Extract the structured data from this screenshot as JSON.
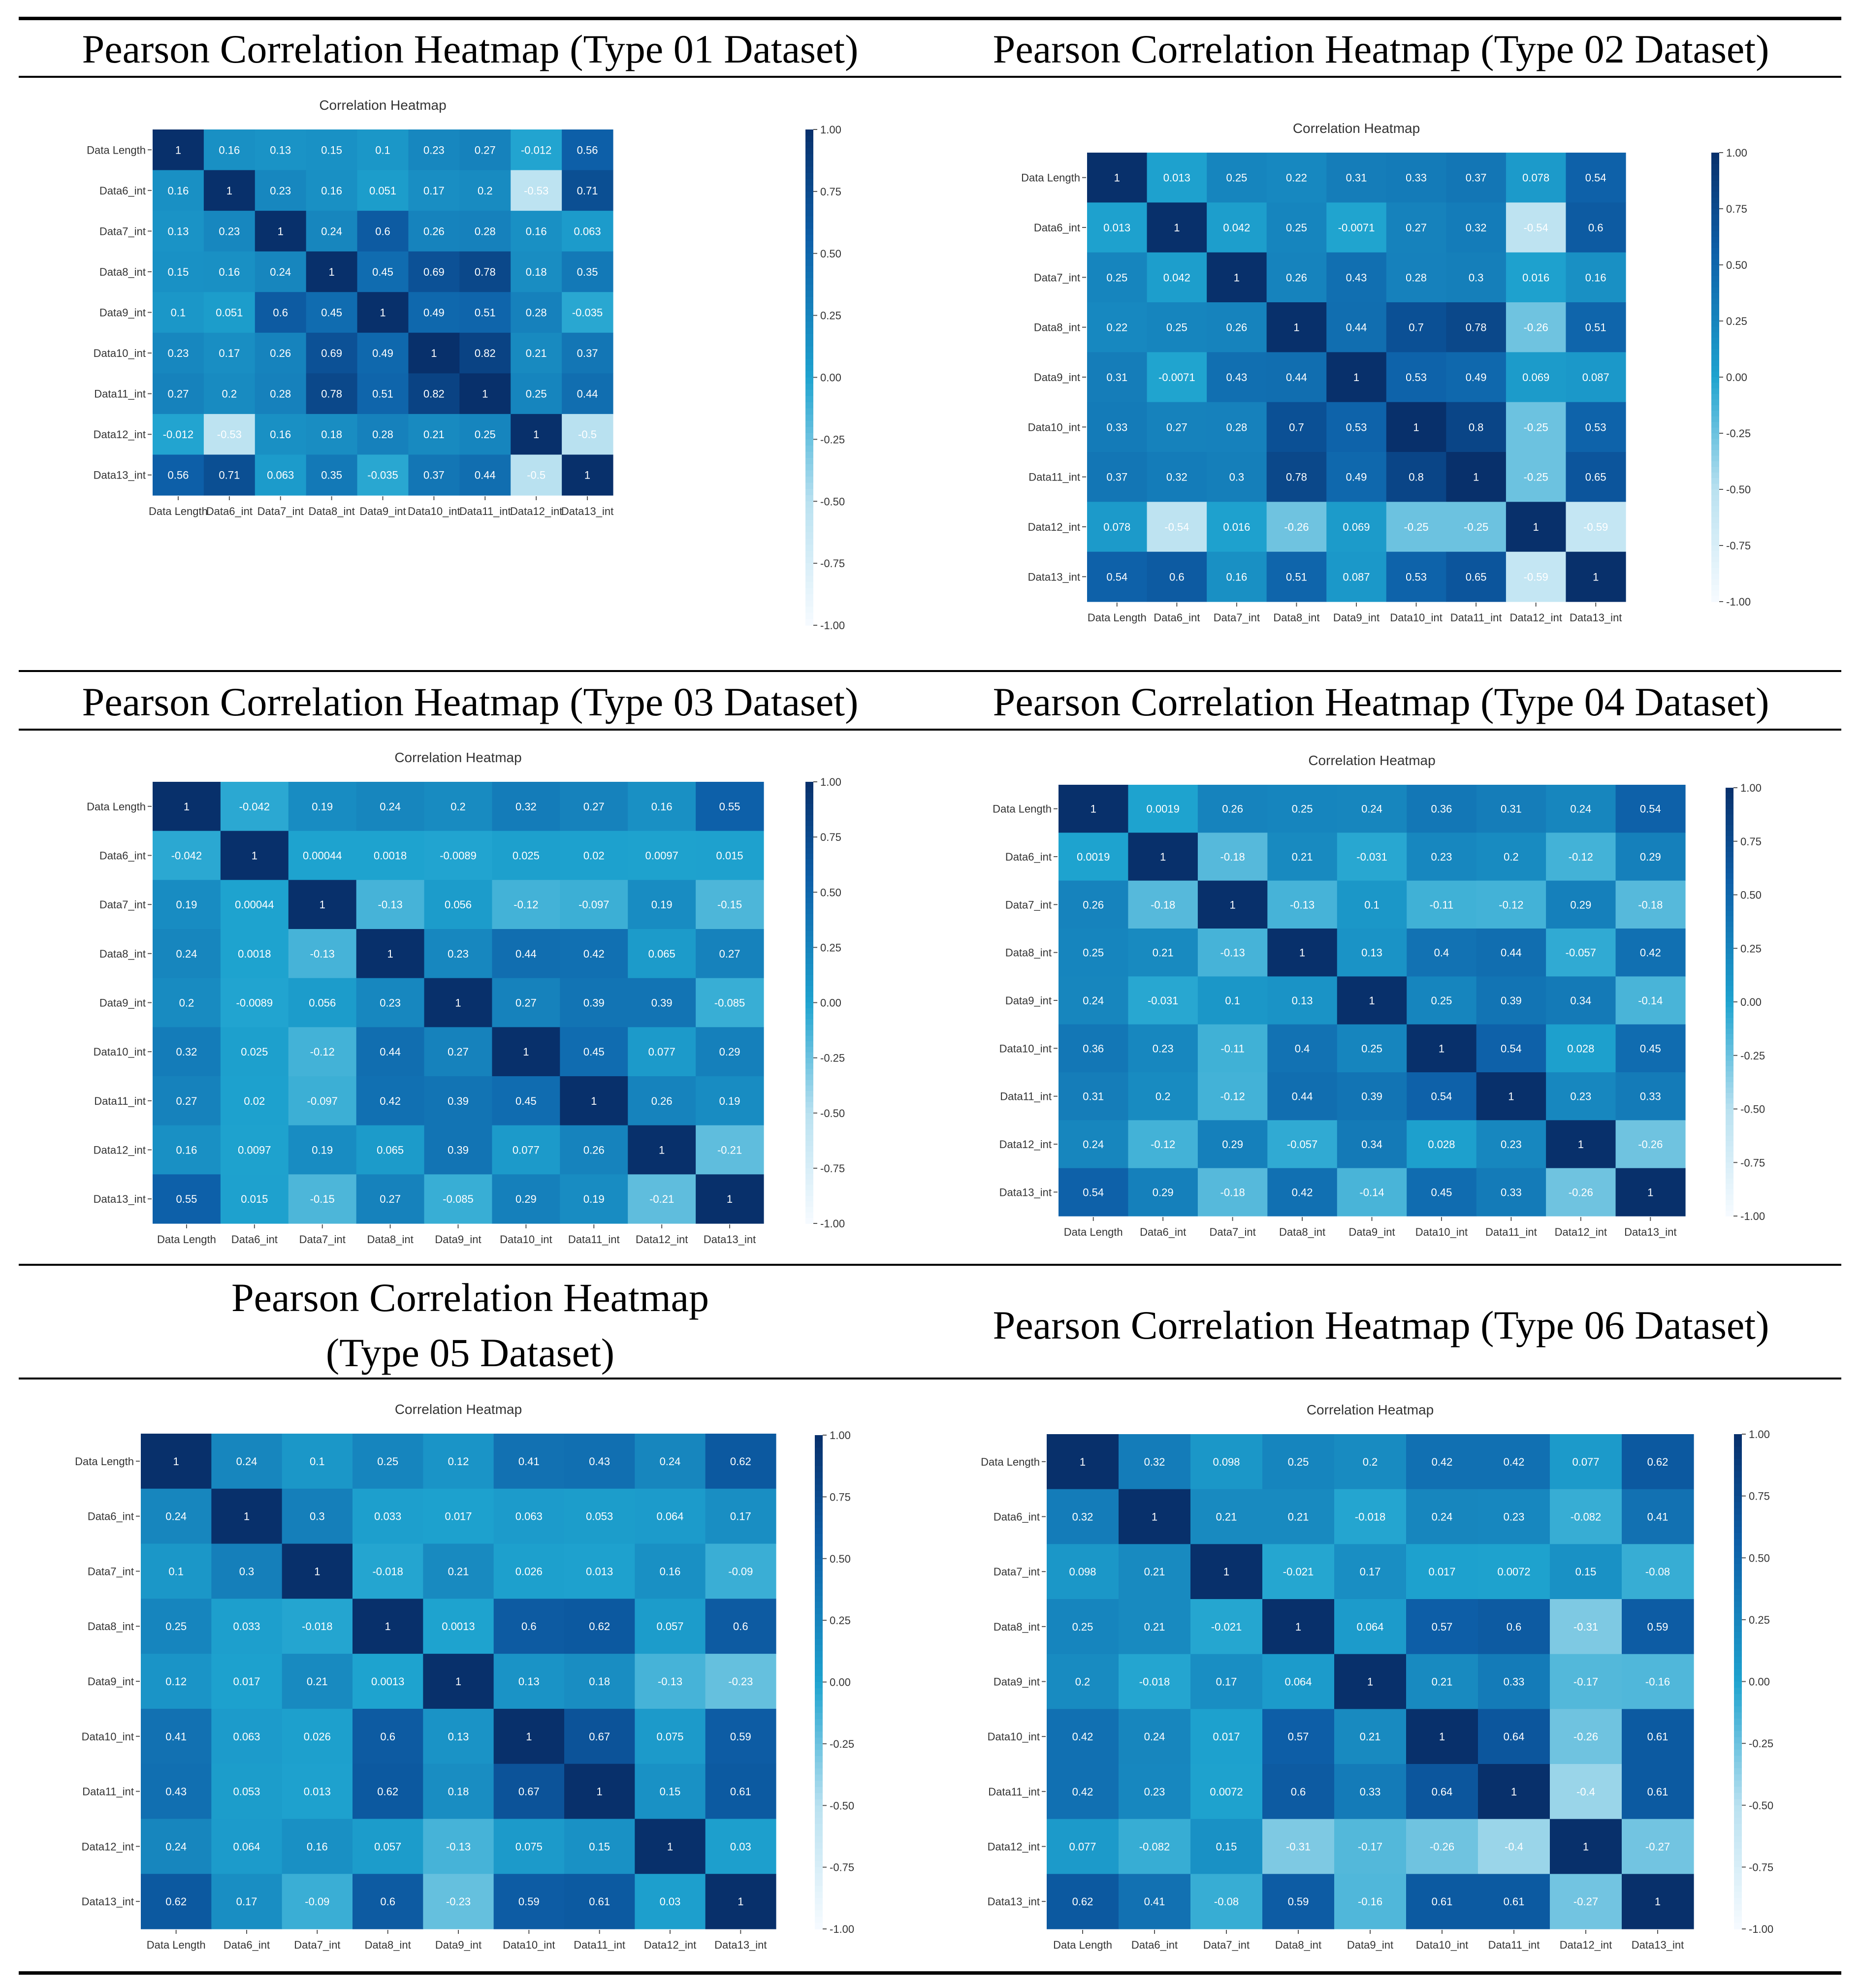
{
  "page": {
    "titles": [
      "Pearson Correlation Heatmap (Type 01 Dataset)",
      "Pearson Correlation Heatmap (Type 02 Dataset)",
      "Pearson Correlation Heatmap (Type 03 Dataset)",
      "Pearson Correlation Heatmap (Type 04 Dataset)",
      "Pearson Correlation Heatmap\n(Type 05 Dataset)",
      "Pearson Correlation Heatmap (Type 06 Dataset)"
    ]
  },
  "colors": {
    "low": "#f7fbff",
    "mid": "#1ea3cf",
    "high": "#08306b",
    "text_light": "#ffffff",
    "axis_text": "#333333"
  },
  "chart_data": [
    {
      "type": "heatmap",
      "title": "Correlation Heatmap",
      "labels": [
        "Data Length",
        "Data6_int",
        "Data7_int",
        "Data8_int",
        "Data9_int",
        "Data10_int",
        "Data11_int",
        "Data12_int",
        "Data13_int"
      ],
      "vmin": -1.0,
      "vmax": 1.0,
      "colorbar_ticks": [
        "1.00",
        "0.75",
        "0.50",
        "0.25",
        "0.00",
        "-0.25",
        "-0.50",
        "-0.75",
        "-1.00"
      ],
      "values": [
        [
          "1",
          "0.16",
          "0.13",
          "0.15",
          "0.1",
          "0.23",
          "0.27",
          "-0.012",
          "0.56"
        ],
        [
          "0.16",
          "1",
          "0.23",
          "0.16",
          "0.051",
          "0.17",
          "0.2",
          "-0.53",
          "0.71"
        ],
        [
          "0.13",
          "0.23",
          "1",
          "0.24",
          "0.6",
          "0.26",
          "0.28",
          "0.16",
          "0.063"
        ],
        [
          "0.15",
          "0.16",
          "0.24",
          "1",
          "0.45",
          "0.69",
          "0.78",
          "0.18",
          "0.35"
        ],
        [
          "0.1",
          "0.051",
          "0.6",
          "0.45",
          "1",
          "0.49",
          "0.51",
          "0.28",
          "-0.035"
        ],
        [
          "0.23",
          "0.17",
          "0.26",
          "0.69",
          "0.49",
          "1",
          "0.82",
          "0.21",
          "0.37"
        ],
        [
          "0.27",
          "0.2",
          "0.28",
          "0.78",
          "0.51",
          "0.82",
          "1",
          "0.25",
          "0.44"
        ],
        [
          "-0.012",
          "-0.53",
          "0.16",
          "0.18",
          "0.28",
          "0.21",
          "0.25",
          "1",
          "-0.5"
        ],
        [
          "0.56",
          "0.71",
          "0.063",
          "0.35",
          "-0.035",
          "0.37",
          "0.44",
          "-0.5",
          "1"
        ]
      ]
    },
    {
      "type": "heatmap",
      "title": "Correlation Heatmap",
      "labels": [
        "Data Length",
        "Data6_int",
        "Data7_int",
        "Data8_int",
        "Data9_int",
        "Data10_int",
        "Data11_int",
        "Data12_int",
        "Data13_int"
      ],
      "vmin": -1.0,
      "vmax": 1.0,
      "colorbar_ticks": [
        "1.00",
        "0.75",
        "0.50",
        "0.25",
        "0.00",
        "-0.25",
        "-0.50",
        "-0.75",
        "-1.00"
      ],
      "values": [
        [
          "1",
          "0.013",
          "0.25",
          "0.22",
          "0.31",
          "0.33",
          "0.37",
          "0.078",
          "0.54"
        ],
        [
          "0.013",
          "1",
          "0.042",
          "0.25",
          "-0.0071",
          "0.27",
          "0.32",
          "-0.54",
          "0.6"
        ],
        [
          "0.25",
          "0.042",
          "1",
          "0.26",
          "0.43",
          "0.28",
          "0.3",
          "0.016",
          "0.16"
        ],
        [
          "0.22",
          "0.25",
          "0.26",
          "1",
          "0.44",
          "0.7",
          "0.78",
          "-0.26",
          "0.51"
        ],
        [
          "0.31",
          "-0.0071",
          "0.43",
          "0.44",
          "1",
          "0.53",
          "0.49",
          "0.069",
          "0.087"
        ],
        [
          "0.33",
          "0.27",
          "0.28",
          "0.7",
          "0.53",
          "1",
          "0.8",
          "-0.25",
          "0.53"
        ],
        [
          "0.37",
          "0.32",
          "0.3",
          "0.78",
          "0.49",
          "0.8",
          "1",
          "-0.25",
          "0.65"
        ],
        [
          "0.078",
          "-0.54",
          "0.016",
          "-0.26",
          "0.069",
          "-0.25",
          "-0.25",
          "1",
          "-0.59"
        ],
        [
          "0.54",
          "0.6",
          "0.16",
          "0.51",
          "0.087",
          "0.53",
          "0.65",
          "-0.59",
          "1"
        ]
      ]
    },
    {
      "type": "heatmap",
      "title": "Correlation Heatmap",
      "labels": [
        "Data Length",
        "Data6_int",
        "Data7_int",
        "Data8_int",
        "Data9_int",
        "Data10_int",
        "Data11_int",
        "Data12_int",
        "Data13_int"
      ],
      "vmin": -1.0,
      "vmax": 1.0,
      "colorbar_ticks": [
        "1.00",
        "0.75",
        "0.50",
        "0.25",
        "0.00",
        "-0.25",
        "-0.50",
        "-0.75",
        "-1.00"
      ],
      "values": [
        [
          "1",
          "-0.042",
          "0.19",
          "0.24",
          "0.2",
          "0.32",
          "0.27",
          "0.16",
          "0.55"
        ],
        [
          "-0.042",
          "1",
          "0.00044",
          "0.0018",
          "-0.0089",
          "0.025",
          "0.02",
          "0.0097",
          "0.015"
        ],
        [
          "0.19",
          "0.00044",
          "1",
          "-0.13",
          "0.056",
          "-0.12",
          "-0.097",
          "0.19",
          "-0.15"
        ],
        [
          "0.24",
          "0.0018",
          "-0.13",
          "1",
          "0.23",
          "0.44",
          "0.42",
          "0.065",
          "0.27"
        ],
        [
          "0.2",
          "-0.0089",
          "0.056",
          "0.23",
          "1",
          "0.27",
          "0.39",
          "0.39",
          "-0.085"
        ],
        [
          "0.32",
          "0.025",
          "-0.12",
          "0.44",
          "0.27",
          "1",
          "0.45",
          "0.077",
          "0.29"
        ],
        [
          "0.27",
          "0.02",
          "-0.097",
          "0.42",
          "0.39",
          "0.45",
          "1",
          "0.26",
          "0.19"
        ],
        [
          "0.16",
          "0.0097",
          "0.19",
          "0.065",
          "0.39",
          "0.077",
          "0.26",
          "1",
          "-0.21"
        ],
        [
          "0.55",
          "0.015",
          "-0.15",
          "0.27",
          "-0.085",
          "0.29",
          "0.19",
          "-0.21",
          "1"
        ]
      ]
    },
    {
      "type": "heatmap",
      "title": "Correlation Heatmap",
      "labels": [
        "Data Length",
        "Data6_int",
        "Data7_int",
        "Data8_int",
        "Data9_int",
        "Data10_int",
        "Data11_int",
        "Data12_int",
        "Data13_int"
      ],
      "vmin": -1.0,
      "vmax": 1.0,
      "colorbar_ticks": [
        "1.00",
        "0.75",
        "0.50",
        "0.25",
        "0.00",
        "-0.25",
        "-0.50",
        "-0.75",
        "-1.00"
      ],
      "values": [
        [
          "1",
          "0.0019",
          "0.26",
          "0.25",
          "0.24",
          "0.36",
          "0.31",
          "0.24",
          "0.54"
        ],
        [
          "0.0019",
          "1",
          "-0.18",
          "0.21",
          "-0.031",
          "0.23",
          "0.2",
          "-0.12",
          "0.29"
        ],
        [
          "0.26",
          "-0.18",
          "1",
          "-0.13",
          "0.1",
          "-0.11",
          "-0.12",
          "0.29",
          "-0.18"
        ],
        [
          "0.25",
          "0.21",
          "-0.13",
          "1",
          "0.13",
          "0.4",
          "0.44",
          "-0.057",
          "0.42"
        ],
        [
          "0.24",
          "-0.031",
          "0.1",
          "0.13",
          "1",
          "0.25",
          "0.39",
          "0.34",
          "-0.14"
        ],
        [
          "0.36",
          "0.23",
          "-0.11",
          "0.4",
          "0.25",
          "1",
          "0.54",
          "0.028",
          "0.45"
        ],
        [
          "0.31",
          "0.2",
          "-0.12",
          "0.44",
          "0.39",
          "0.54",
          "1",
          "0.23",
          "0.33"
        ],
        [
          "0.24",
          "-0.12",
          "0.29",
          "-0.057",
          "0.34",
          "0.028",
          "0.23",
          "1",
          "-0.26"
        ],
        [
          "0.54",
          "0.29",
          "-0.18",
          "0.42",
          "-0.14",
          "0.45",
          "0.33",
          "-0.26",
          "1"
        ]
      ]
    },
    {
      "type": "heatmap",
      "title": "Correlation Heatmap",
      "labels": [
        "Data Length",
        "Data6_int",
        "Data7_int",
        "Data8_int",
        "Data9_int",
        "Data10_int",
        "Data11_int",
        "Data12_int",
        "Data13_int"
      ],
      "vmin": -1.0,
      "vmax": 1.0,
      "colorbar_ticks": [
        "1.00",
        "0.75",
        "0.50",
        "0.25",
        "0.00",
        "-0.25",
        "-0.50",
        "-0.75",
        "-1.00"
      ],
      "values": [
        [
          "1",
          "0.24",
          "0.1",
          "0.25",
          "0.12",
          "0.41",
          "0.43",
          "0.24",
          "0.62"
        ],
        [
          "0.24",
          "1",
          "0.3",
          "0.033",
          "0.017",
          "0.063",
          "0.053",
          "0.064",
          "0.17"
        ],
        [
          "0.1",
          "0.3",
          "1",
          "-0.018",
          "0.21",
          "0.026",
          "0.013",
          "0.16",
          "-0.09"
        ],
        [
          "0.25",
          "0.033",
          "-0.018",
          "1",
          "0.0013",
          "0.6",
          "0.62",
          "0.057",
          "0.6"
        ],
        [
          "0.12",
          "0.017",
          "0.21",
          "0.0013",
          "1",
          "0.13",
          "0.18",
          "-0.13",
          "-0.23"
        ],
        [
          "0.41",
          "0.063",
          "0.026",
          "0.6",
          "0.13",
          "1",
          "0.67",
          "0.075",
          "0.59"
        ],
        [
          "0.43",
          "0.053",
          "0.013",
          "0.62",
          "0.18",
          "0.67",
          "1",
          "0.15",
          "0.61"
        ],
        [
          "0.24",
          "0.064",
          "0.16",
          "0.057",
          "-0.13",
          "0.075",
          "0.15",
          "1",
          "0.03"
        ],
        [
          "0.62",
          "0.17",
          "-0.09",
          "0.6",
          "-0.23",
          "0.59",
          "0.61",
          "0.03",
          "1"
        ]
      ]
    },
    {
      "type": "heatmap",
      "title": "Correlation Heatmap",
      "labels": [
        "Data Length",
        "Data6_int",
        "Data7_int",
        "Data8_int",
        "Data9_int",
        "Data10_int",
        "Data11_int",
        "Data12_int",
        "Data13_int"
      ],
      "vmin": -1.0,
      "vmax": 1.0,
      "colorbar_ticks": [
        "1.00",
        "0.75",
        "0.50",
        "0.25",
        "0.00",
        "-0.25",
        "-0.50",
        "-0.75",
        "-1.00"
      ],
      "values": [
        [
          "1",
          "0.32",
          "0.098",
          "0.25",
          "0.2",
          "0.42",
          "0.42",
          "0.077",
          "0.62"
        ],
        [
          "0.32",
          "1",
          "0.21",
          "0.21",
          "-0.018",
          "0.24",
          "0.23",
          "-0.082",
          "0.41"
        ],
        [
          "0.098",
          "0.21",
          "1",
          "-0.021",
          "0.17",
          "0.017",
          "0.0072",
          "0.15",
          "-0.08"
        ],
        [
          "0.25",
          "0.21",
          "-0.021",
          "1",
          "0.064",
          "0.57",
          "0.6",
          "-0.31",
          "0.59"
        ],
        [
          "0.2",
          "-0.018",
          "0.17",
          "0.064",
          "1",
          "0.21",
          "0.33",
          "-0.17",
          "-0.16"
        ],
        [
          "0.42",
          "0.24",
          "0.017",
          "0.57",
          "0.21",
          "1",
          "0.64",
          "-0.26",
          "0.61"
        ],
        [
          "0.42",
          "0.23",
          "0.0072",
          "0.6",
          "0.33",
          "0.64",
          "1",
          "-0.4",
          "0.61"
        ],
        [
          "0.077",
          "-0.082",
          "0.15",
          "-0.31",
          "-0.17",
          "-0.26",
          "-0.4",
          "1",
          "-0.27"
        ],
        [
          "0.62",
          "0.41",
          "-0.08",
          "0.59",
          "-0.16",
          "0.61",
          "0.61",
          "-0.27",
          "1"
        ]
      ]
    }
  ]
}
